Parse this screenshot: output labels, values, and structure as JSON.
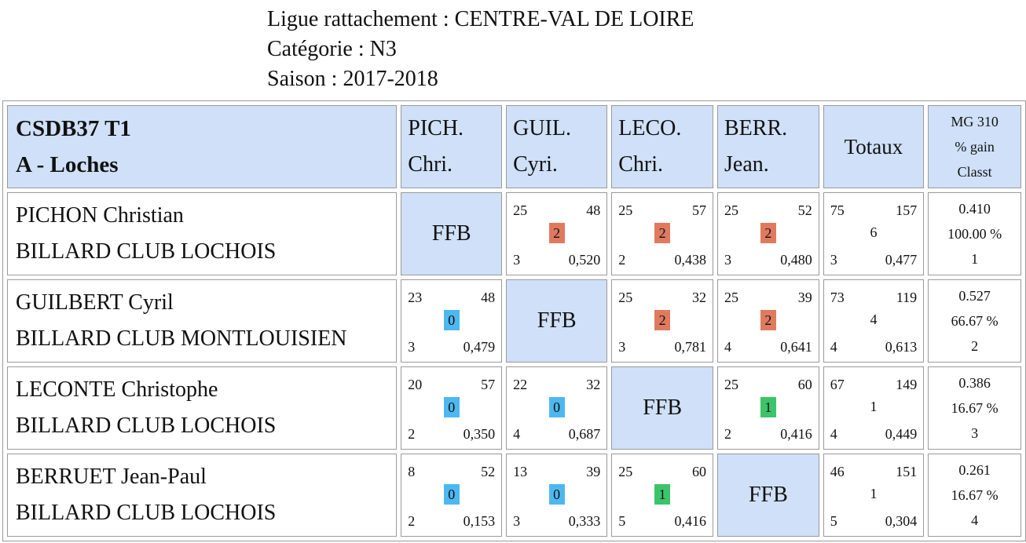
{
  "header": {
    "ligue": "Ligue rattachement : CENTRE-VAL DE LOIRE",
    "categorie": "Catégorie : N3",
    "saison": "Saison : 2017-2018"
  },
  "table": {
    "team_line1": "CSDB37 T1",
    "team_line2": "A - Loches",
    "columns": [
      {
        "l1": "PICH.",
        "l2": "Chri."
      },
      {
        "l1": "GUIL.",
        "l2": "Cyri."
      },
      {
        "l1": "LECO.",
        "l2": "Chri."
      },
      {
        "l1": "BERR.",
        "l2": "Jean."
      }
    ],
    "totaux_label": "Totaux",
    "mg_label": "MG 310",
    "gain_label": "% gain",
    "classt_label": "Classt",
    "ffb_label": "FFB",
    "colors": {
      "win": "#e07a5f",
      "loss": "#4db8f0",
      "draw": "#3cc46a",
      "header": "#cfe0f8"
    },
    "rows": [
      {
        "name": "PICHON Christian",
        "club": "BILLARD CLUB LOCHOIS",
        "cells": [
          null,
          {
            "tl": "25",
            "tr": "48",
            "mid": "2",
            "kind": "win",
            "bl": "3",
            "br": "0,520"
          },
          {
            "tl": "25",
            "tr": "57",
            "mid": "2",
            "kind": "win",
            "bl": "2",
            "br": "0,438"
          },
          {
            "tl": "25",
            "tr": "52",
            "mid": "2",
            "kind": "win",
            "bl": "3",
            "br": "0,480"
          }
        ],
        "totals": {
          "tl": "75",
          "tr": "157",
          "mid": "6",
          "bl": "3",
          "br": "0,477"
        },
        "stats": {
          "mg": "0.410",
          "gain": "100.00 %",
          "classt": "1"
        }
      },
      {
        "name": "GUILBERT Cyril",
        "club": "BILLARD CLUB MONTLOUISIEN",
        "cells": [
          {
            "tl": "23",
            "tr": "48",
            "mid": "0",
            "kind": "loss",
            "bl": "3",
            "br": "0,479"
          },
          null,
          {
            "tl": "25",
            "tr": "32",
            "mid": "2",
            "kind": "win",
            "bl": "3",
            "br": "0,781"
          },
          {
            "tl": "25",
            "tr": "39",
            "mid": "2",
            "kind": "win",
            "bl": "4",
            "br": "0,641"
          }
        ],
        "totals": {
          "tl": "73",
          "tr": "119",
          "mid": "4",
          "bl": "4",
          "br": "0,613"
        },
        "stats": {
          "mg": "0.527",
          "gain": "66.67 %",
          "classt": "2"
        }
      },
      {
        "name": "LECONTE Christophe",
        "club": "BILLARD CLUB LOCHOIS",
        "cells": [
          {
            "tl": "20",
            "tr": "57",
            "mid": "0",
            "kind": "loss",
            "bl": "2",
            "br": "0,350"
          },
          {
            "tl": "22",
            "tr": "32",
            "mid": "0",
            "kind": "loss",
            "bl": "4",
            "br": "0,687"
          },
          null,
          {
            "tl": "25",
            "tr": "60",
            "mid": "1",
            "kind": "draw",
            "bl": "2",
            "br": "0,416"
          }
        ],
        "totals": {
          "tl": "67",
          "tr": "149",
          "mid": "1",
          "bl": "4",
          "br": "0,449"
        },
        "stats": {
          "mg": "0.386",
          "gain": "16.67 %",
          "classt": "3"
        }
      },
      {
        "name": "BERRUET Jean-Paul",
        "club": "BILLARD CLUB LOCHOIS",
        "cells": [
          {
            "tl": "8",
            "tr": "52",
            "mid": "0",
            "kind": "loss",
            "bl": "2",
            "br": "0,153"
          },
          {
            "tl": "13",
            "tr": "39",
            "mid": "0",
            "kind": "loss",
            "bl": "3",
            "br": "0,333"
          },
          {
            "tl": "25",
            "tr": "60",
            "mid": "1",
            "kind": "draw",
            "bl": "5",
            "br": "0,416"
          },
          null
        ],
        "totals": {
          "tl": "46",
          "tr": "151",
          "mid": "1",
          "bl": "5",
          "br": "0,304"
        },
        "stats": {
          "mg": "0.261",
          "gain": "16.67 %",
          "classt": "4"
        }
      }
    ]
  }
}
